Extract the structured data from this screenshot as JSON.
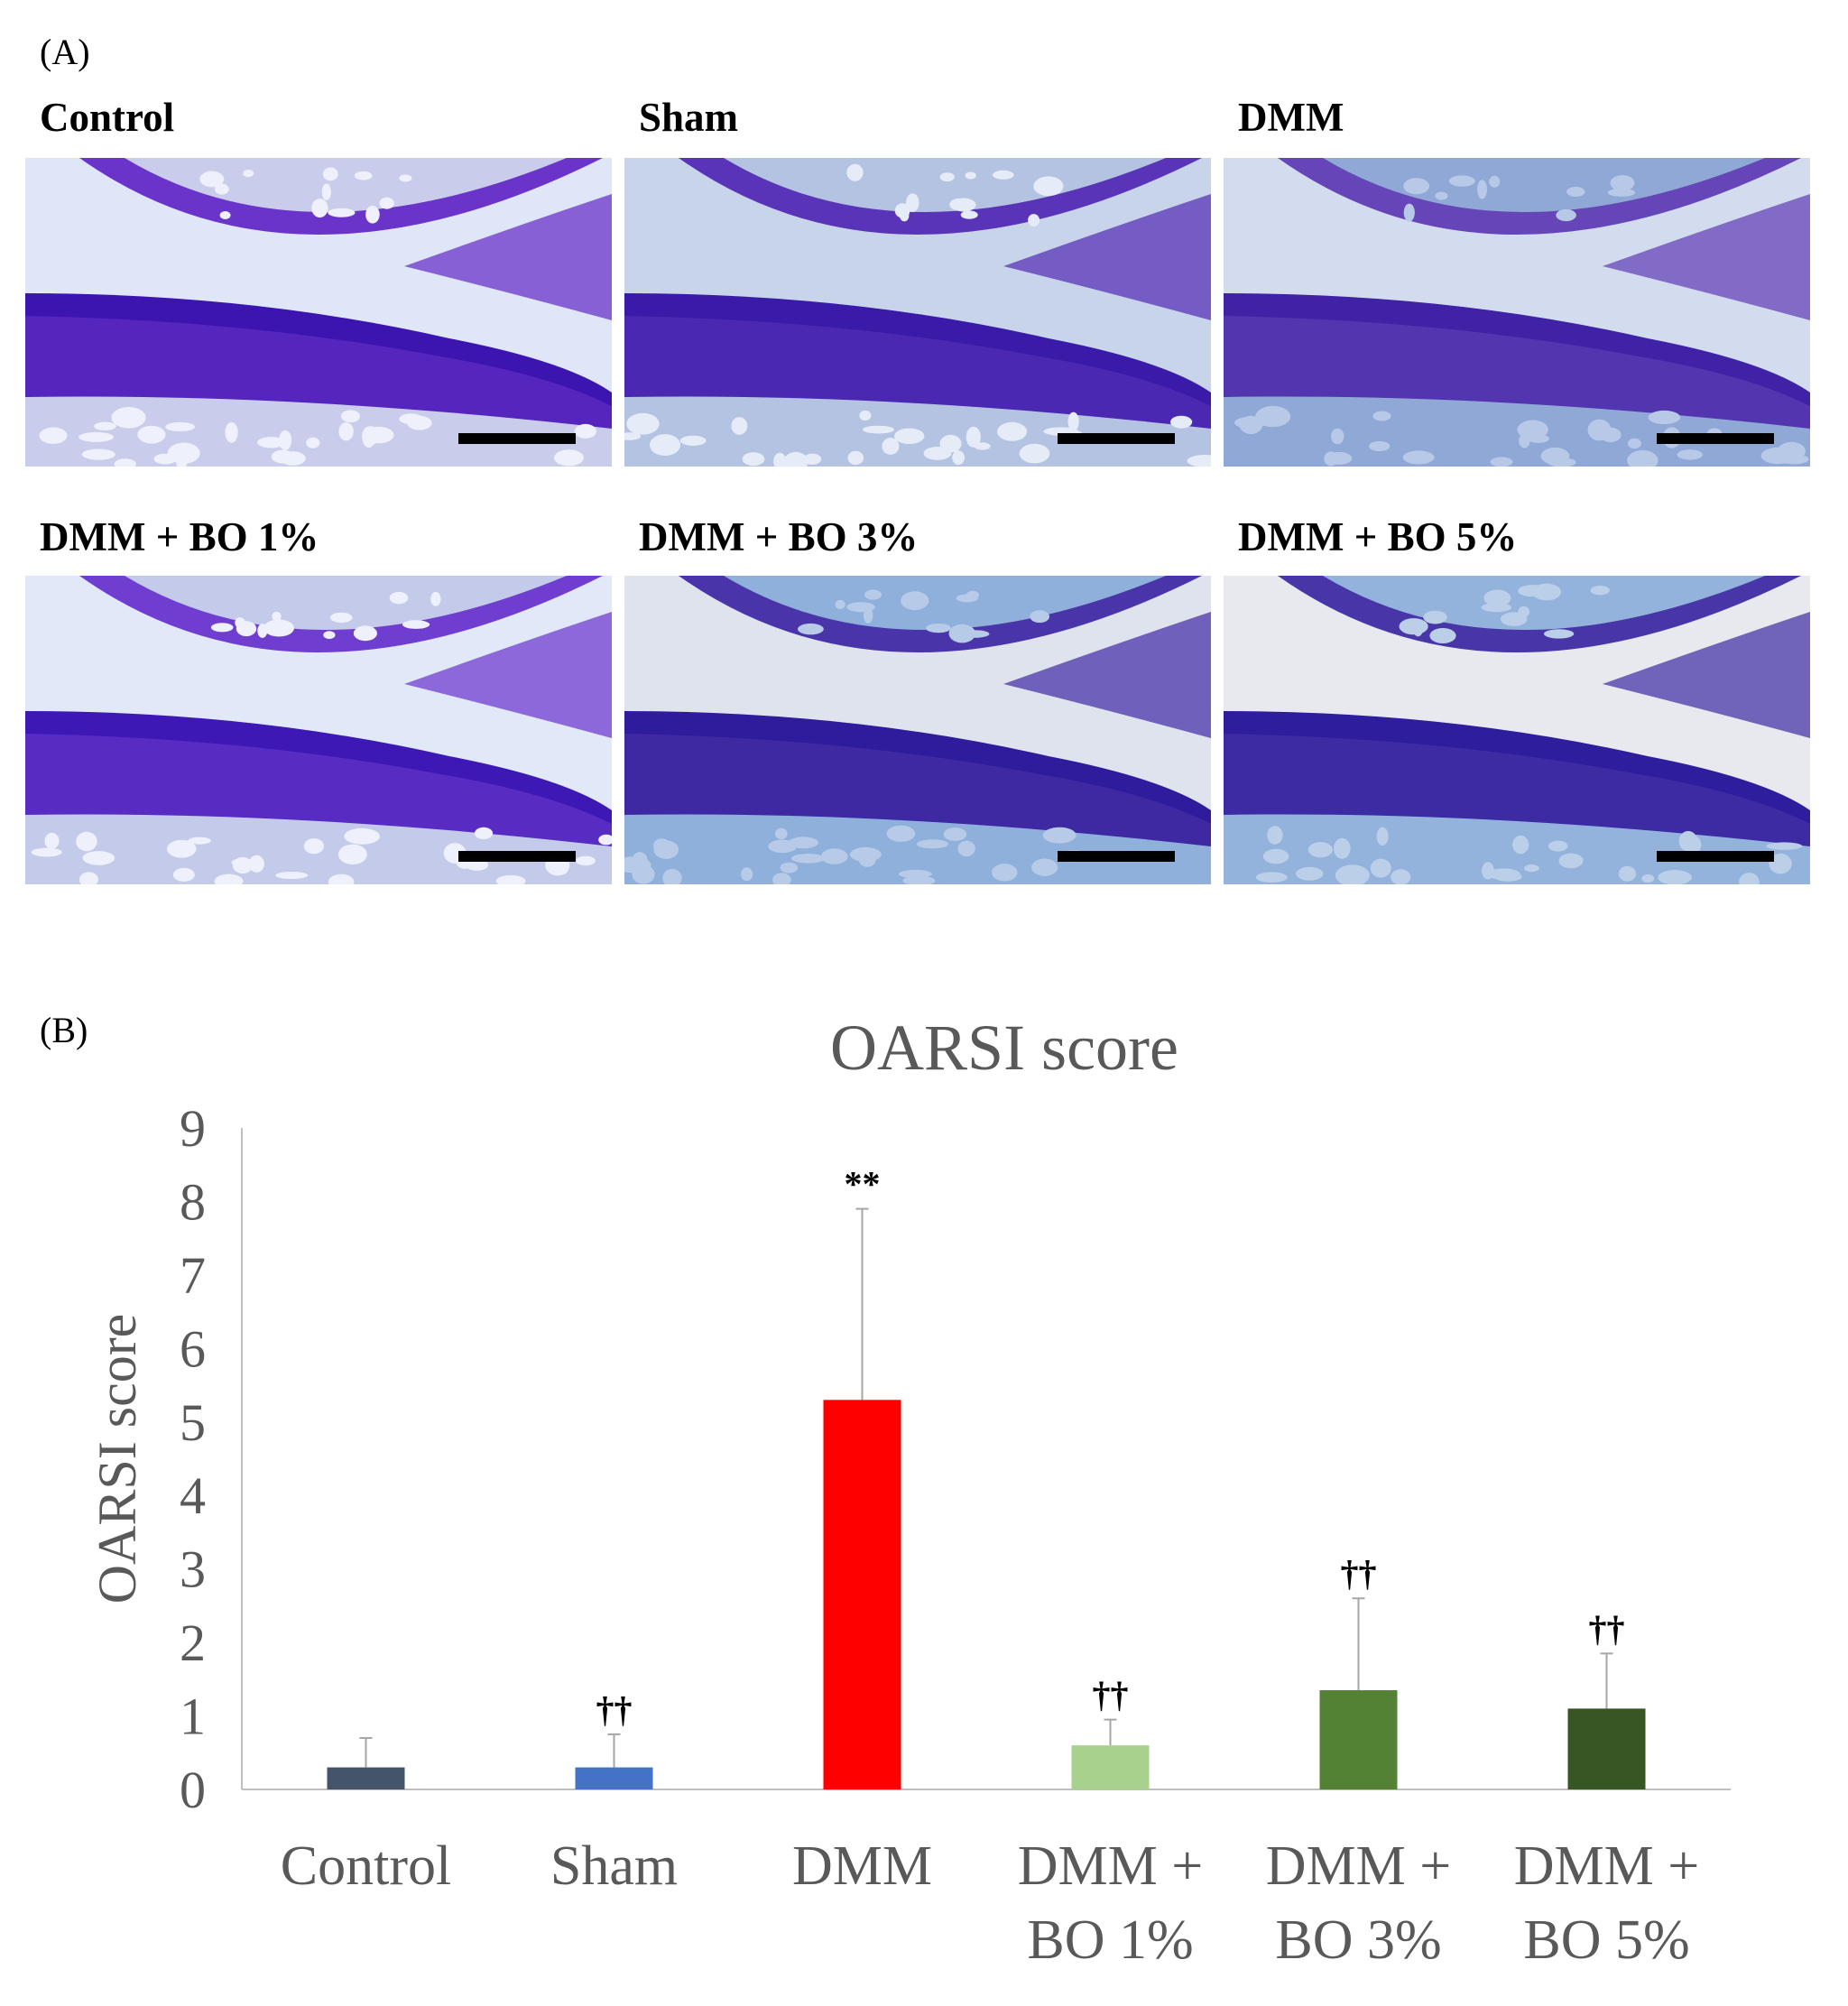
{
  "panel_a": {
    "letter": "(A)",
    "images": [
      {
        "label": "Control",
        "style": "control"
      },
      {
        "label": "Sham",
        "style": "sham"
      },
      {
        "label": "DMM",
        "style": "dmm"
      },
      {
        "label": "DMM + BO 1%",
        "style": "bo1"
      },
      {
        "label": "DMM + BO 3%",
        "style": "bo3"
      },
      {
        "label": "DMM + BO 5%",
        "style": "bo5"
      }
    ]
  },
  "panel_b": {
    "letter": "(B)"
  },
  "chart_data": {
    "type": "bar",
    "title": "OARSI score",
    "xlabel": "",
    "ylabel": "OARSI score",
    "ylim": [
      0,
      9
    ],
    "yticks": [
      0,
      1,
      2,
      3,
      4,
      5,
      6,
      7,
      8,
      9
    ],
    "grid": false,
    "categories": [
      [
        "Control"
      ],
      [
        "Sham"
      ],
      [
        "DMM"
      ],
      [
        "DMM +",
        "BO 1%"
      ],
      [
        "DMM +",
        "BO 3%"
      ],
      [
        "DMM +",
        "BO 5%"
      ]
    ],
    "values": [
      0.3,
      0.3,
      5.3,
      0.6,
      1.35,
      1.1
    ],
    "error_upper": [
      0.4,
      0.45,
      2.6,
      0.35,
      1.25,
      0.75
    ],
    "annotations": [
      "",
      "††",
      "**",
      "††",
      "††",
      "††"
    ],
    "colors": [
      "#44546a",
      "#4472c4",
      "#ff0000",
      "#a9d18e",
      "#548235",
      "#375623"
    ]
  }
}
